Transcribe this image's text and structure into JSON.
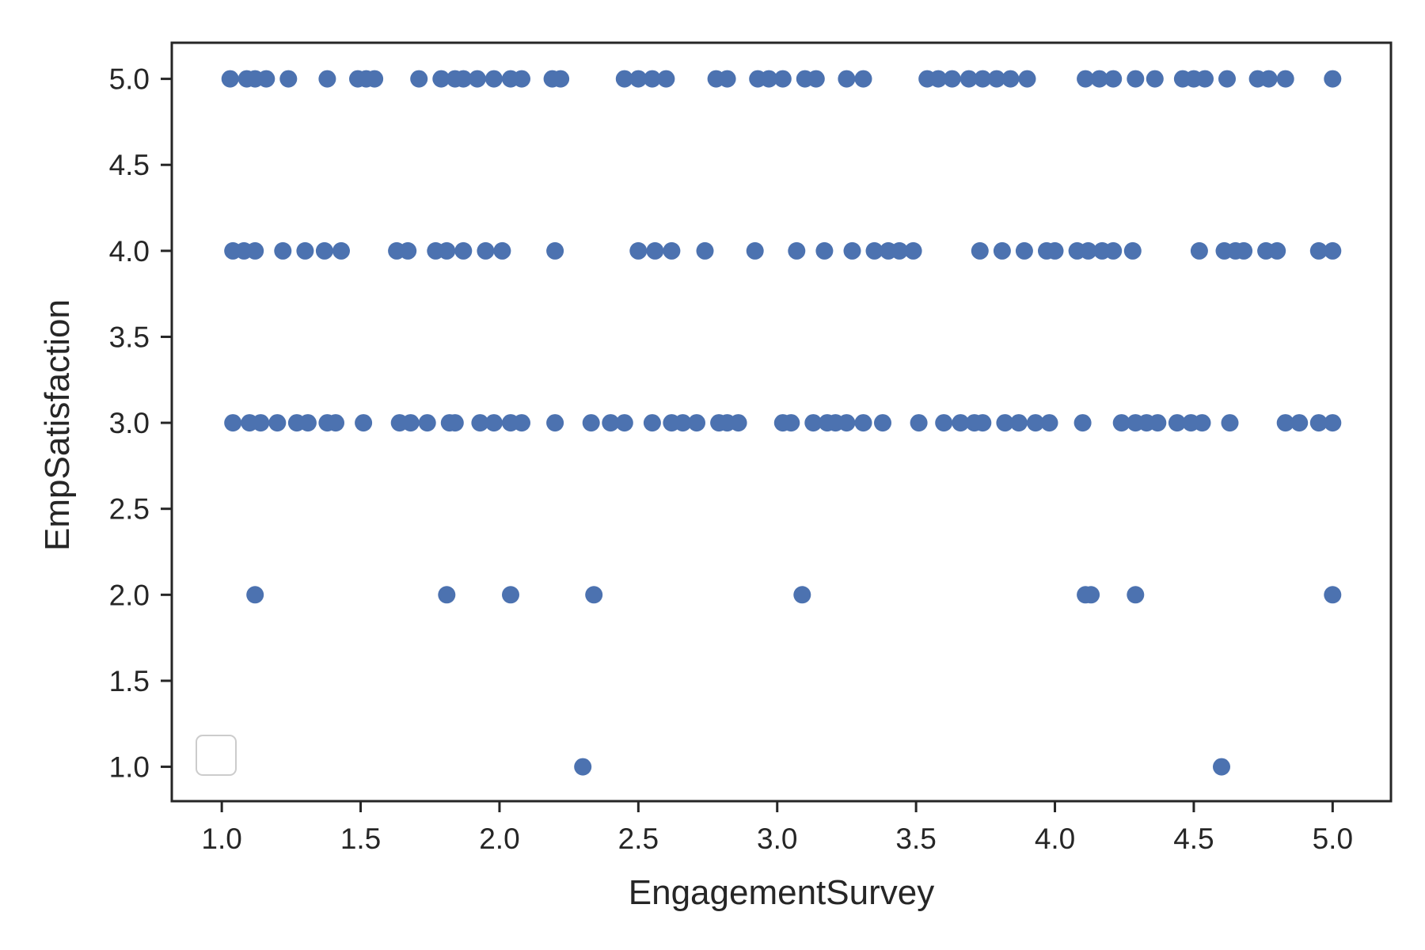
{
  "chart_data": {
    "type": "scatter",
    "title": "",
    "xlabel": "EngagementSurvey",
    "ylabel": "EmpSatisfaction",
    "xlim": [
      0.82,
      5.21
    ],
    "ylim": [
      0.8,
      5.21
    ],
    "xticks": [
      "1.0",
      "1.5",
      "2.0",
      "2.5",
      "3.0",
      "3.5",
      "4.0",
      "4.5",
      "5.0"
    ],
    "yticks": [
      "1.0",
      "1.5",
      "2.0",
      "2.5",
      "3.0",
      "3.5",
      "4.0",
      "4.5",
      "5.0"
    ],
    "grid": false,
    "legend": {
      "position": "lower-left",
      "entries": []
    },
    "marker_color": "#4c72b0",
    "series": [
      {
        "points": [
          [
            1.03,
            5
          ],
          [
            1.09,
            5
          ],
          [
            1.12,
            5
          ],
          [
            1.16,
            5
          ],
          [
            1.24,
            5
          ],
          [
            1.38,
            5
          ],
          [
            1.49,
            5
          ],
          [
            1.52,
            5
          ],
          [
            1.55,
            5
          ],
          [
            1.71,
            5
          ],
          [
            1.79,
            5
          ],
          [
            1.84,
            5
          ],
          [
            1.87,
            5
          ],
          [
            1.92,
            5
          ],
          [
            1.98,
            5
          ],
          [
            2.04,
            5
          ],
          [
            2.08,
            5
          ],
          [
            2.19,
            5
          ],
          [
            2.22,
            5
          ],
          [
            2.45,
            5
          ],
          [
            2.5,
            5
          ],
          [
            2.55,
            5
          ],
          [
            2.6,
            5
          ],
          [
            2.78,
            5
          ],
          [
            2.82,
            5
          ],
          [
            2.93,
            5
          ],
          [
            2.97,
            5
          ],
          [
            3.02,
            5
          ],
          [
            3.1,
            5
          ],
          [
            3.14,
            5
          ],
          [
            3.25,
            5
          ],
          [
            3.31,
            5
          ],
          [
            3.54,
            5
          ],
          [
            3.58,
            5
          ],
          [
            3.63,
            5
          ],
          [
            3.69,
            5
          ],
          [
            3.74,
            5
          ],
          [
            3.79,
            5
          ],
          [
            3.84,
            5
          ],
          [
            3.9,
            5
          ],
          [
            4.11,
            5
          ],
          [
            4.16,
            5
          ],
          [
            4.21,
            5
          ],
          [
            4.29,
            5
          ],
          [
            4.36,
            5
          ],
          [
            4.46,
            5
          ],
          [
            4.5,
            5
          ],
          [
            4.54,
            5
          ],
          [
            4.62,
            5
          ],
          [
            4.73,
            5
          ],
          [
            4.77,
            5
          ],
          [
            4.83,
            5
          ],
          [
            5.0,
            5
          ],
          [
            1.04,
            4
          ],
          [
            1.08,
            4
          ],
          [
            1.12,
            4
          ],
          [
            1.22,
            4
          ],
          [
            1.3,
            4
          ],
          [
            1.37,
            4
          ],
          [
            1.43,
            4
          ],
          [
            1.63,
            4
          ],
          [
            1.67,
            4
          ],
          [
            1.77,
            4
          ],
          [
            1.81,
            4
          ],
          [
            1.87,
            4
          ],
          [
            1.95,
            4
          ],
          [
            2.01,
            4
          ],
          [
            2.2,
            4
          ],
          [
            2.5,
            4
          ],
          [
            2.56,
            4
          ],
          [
            2.62,
            4
          ],
          [
            2.74,
            4
          ],
          [
            2.92,
            4
          ],
          [
            3.07,
            4
          ],
          [
            3.17,
            4
          ],
          [
            3.27,
            4
          ],
          [
            3.35,
            4
          ],
          [
            3.4,
            4
          ],
          [
            3.44,
            4
          ],
          [
            3.49,
            4
          ],
          [
            3.73,
            4
          ],
          [
            3.81,
            4
          ],
          [
            3.89,
            4
          ],
          [
            3.97,
            4
          ],
          [
            4.0,
            4
          ],
          [
            4.08,
            4
          ],
          [
            4.12,
            4
          ],
          [
            4.17,
            4
          ],
          [
            4.21,
            4
          ],
          [
            4.28,
            4
          ],
          [
            4.52,
            4
          ],
          [
            4.61,
            4
          ],
          [
            4.65,
            4
          ],
          [
            4.68,
            4
          ],
          [
            4.76,
            4
          ],
          [
            4.8,
            4
          ],
          [
            4.95,
            4
          ],
          [
            5.0,
            4
          ],
          [
            1.04,
            3
          ],
          [
            1.1,
            3
          ],
          [
            1.14,
            3
          ],
          [
            1.2,
            3
          ],
          [
            1.27,
            3
          ],
          [
            1.31,
            3
          ],
          [
            1.38,
            3
          ],
          [
            1.41,
            3
          ],
          [
            1.51,
            3
          ],
          [
            1.64,
            3
          ],
          [
            1.68,
            3
          ],
          [
            1.74,
            3
          ],
          [
            1.82,
            3
          ],
          [
            1.84,
            3
          ],
          [
            1.93,
            3
          ],
          [
            1.98,
            3
          ],
          [
            2.04,
            3
          ],
          [
            2.08,
            3
          ],
          [
            2.2,
            3
          ],
          [
            2.33,
            3
          ],
          [
            2.4,
            3
          ],
          [
            2.45,
            3
          ],
          [
            2.55,
            3
          ],
          [
            2.62,
            3
          ],
          [
            2.66,
            3
          ],
          [
            2.71,
            3
          ],
          [
            2.79,
            3
          ],
          [
            2.82,
            3
          ],
          [
            2.86,
            3
          ],
          [
            3.02,
            3
          ],
          [
            3.05,
            3
          ],
          [
            3.13,
            3
          ],
          [
            3.18,
            3
          ],
          [
            3.21,
            3
          ],
          [
            3.25,
            3
          ],
          [
            3.31,
            3
          ],
          [
            3.38,
            3
          ],
          [
            3.51,
            3
          ],
          [
            3.6,
            3
          ],
          [
            3.66,
            3
          ],
          [
            3.71,
            3
          ],
          [
            3.74,
            3
          ],
          [
            3.82,
            3
          ],
          [
            3.87,
            3
          ],
          [
            3.93,
            3
          ],
          [
            3.98,
            3
          ],
          [
            4.1,
            3
          ],
          [
            4.24,
            3
          ],
          [
            4.29,
            3
          ],
          [
            4.33,
            3
          ],
          [
            4.37,
            3
          ],
          [
            4.44,
            3
          ],
          [
            4.49,
            3
          ],
          [
            4.53,
            3
          ],
          [
            4.63,
            3
          ],
          [
            4.83,
            3
          ],
          [
            4.88,
            3
          ],
          [
            4.95,
            3
          ],
          [
            5.0,
            3
          ],
          [
            1.12,
            2
          ],
          [
            1.81,
            2
          ],
          [
            2.04,
            2
          ],
          [
            2.34,
            2
          ],
          [
            3.09,
            2
          ],
          [
            4.11,
            2
          ],
          [
            4.13,
            2
          ],
          [
            4.29,
            2
          ],
          [
            5.0,
            2
          ],
          [
            2.3,
            1
          ],
          [
            4.6,
            1
          ]
        ]
      }
    ]
  }
}
